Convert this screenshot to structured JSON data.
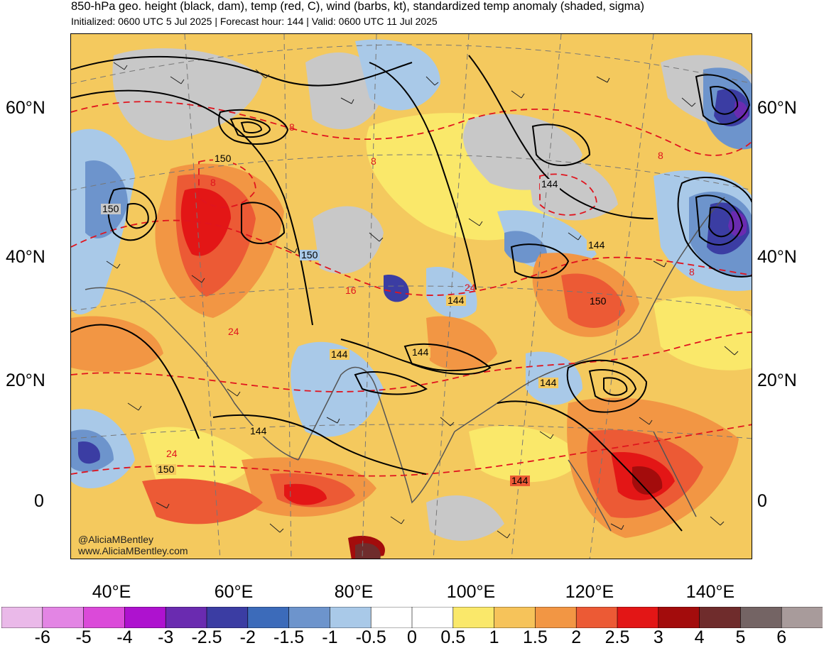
{
  "header": {
    "title": "850-hPa geo. height (black, dam), temp (red, C), wind (barbs, kt), standardized temp anomaly (shaded, sigma)",
    "subtitle": "Initialized: 0600 UTC 5 Jul 2025 | Forecast hour: 144 | Valid: 0600 UTC 11 Jul 2025"
  },
  "map": {
    "lat_labels": [
      "60°N",
      "40°N",
      "20°N",
      "0"
    ],
    "lon_labels": [
      "40°E",
      "60°E",
      "80°E",
      "100°E",
      "120°E",
      "140°E"
    ],
    "height_contour_labels": [
      "150",
      "150",
      "150",
      "144",
      "144",
      "144",
      "144",
      "144",
      "144",
      "150",
      "144",
      "144",
      "150"
    ],
    "temp_contour_labels": [
      "8",
      "8",
      "8",
      "16",
      "24",
      "24",
      "24",
      "8",
      "8"
    ],
    "credit": [
      "@AliciaMBentley",
      "www.AliciaMBentley.com"
    ]
  },
  "colorbar": {
    "labels": [
      "-6",
      "-5",
      "-4",
      "-3",
      "-2.5",
      "-2",
      "-1.5",
      "-1",
      "-0.5",
      "0",
      "0.5",
      "1",
      "1.5",
      "2",
      "2.5",
      "3",
      "4",
      "5",
      "6"
    ],
    "colors": [
      "#eab9e9",
      "#e385e4",
      "#db4ad9",
      "#ae12cf",
      "#6a2bb0",
      "#3b3da3",
      "#3c6bba",
      "#6d94cc",
      "#a9c9e8",
      "#ffffff",
      "#ffffff",
      "#fae86a",
      "#f6c35a",
      "#f29644",
      "#ec5a35",
      "#e31616",
      "#a30c0c",
      "#6f2c2c",
      "#746464",
      "#a89b9b"
    ]
  },
  "palette": {
    "land_gray": "#c8c8c8",
    "height_contour": "#000000",
    "temp_contour": "#e0141e"
  }
}
